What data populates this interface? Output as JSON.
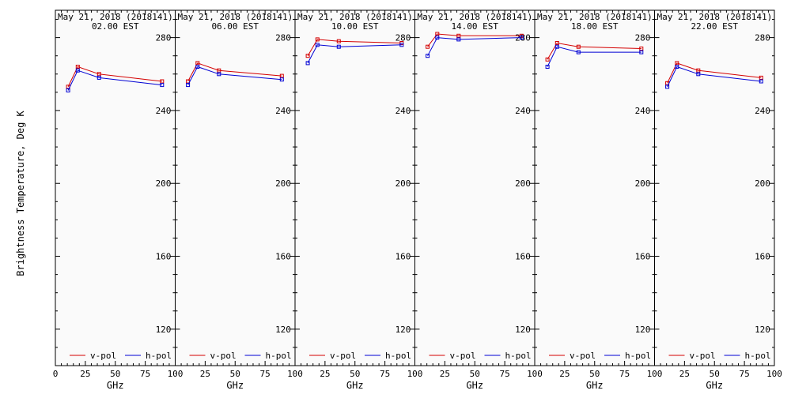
{
  "figure": {
    "ylabel": "Brightness Temperature, Deg K"
  },
  "chart_data": [
    {
      "type": "line",
      "title": "May 21, 2018 (2018141)",
      "subtitle": "02.00 EST",
      "xlabel": "GHz",
      "ylabel": "Brightness Temperature, Deg K",
      "xlim": [
        0,
        100
      ],
      "ylim": [
        100,
        295
      ],
      "x_ticks": [
        0,
        25,
        50,
        75,
        100
      ],
      "y_ticks": [
        120,
        160,
        200,
        240,
        280
      ],
      "grid": false,
      "legend": "bottom",
      "series": [
        {
          "name": "v-pol",
          "color": "#d40000",
          "x": [
            10.65,
            18.7,
            36.5,
            89.0
          ],
          "y": [
            253,
            264,
            260,
            256
          ]
        },
        {
          "name": "h-pol",
          "color": "#0000d4",
          "x": [
            10.65,
            18.7,
            36.5,
            89.0
          ],
          "y": [
            251,
            262,
            258,
            254
          ]
        }
      ]
    },
    {
      "type": "line",
      "title": "May 21, 2018 (2018141)",
      "subtitle": "06.00 EST",
      "xlabel": "GHz",
      "ylabel": "Brightness Temperature, Deg K",
      "xlim": [
        0,
        100
      ],
      "ylim": [
        100,
        295
      ],
      "x_ticks": [
        0,
        25,
        50,
        75,
        100
      ],
      "y_ticks": [
        120,
        160,
        200,
        240,
        280
      ],
      "grid": false,
      "legend": "bottom",
      "series": [
        {
          "name": "v-pol",
          "color": "#d40000",
          "x": [
            10.65,
            18.7,
            36.5,
            89.0
          ],
          "y": [
            256,
            266,
            262,
            259
          ]
        },
        {
          "name": "h-pol",
          "color": "#0000d4",
          "x": [
            10.65,
            18.7,
            36.5,
            89.0
          ],
          "y": [
            254,
            264,
            260,
            257
          ]
        }
      ]
    },
    {
      "type": "line",
      "title": "May 21, 2018 (2018141)",
      "subtitle": "10.00 EST",
      "xlabel": "GHz",
      "ylabel": "Brightness Temperature, Deg K",
      "xlim": [
        0,
        100
      ],
      "ylim": [
        100,
        295
      ],
      "x_ticks": [
        0,
        25,
        50,
        75,
        100
      ],
      "y_ticks": [
        120,
        160,
        200,
        240,
        280
      ],
      "grid": false,
      "legend": "bottom",
      "series": [
        {
          "name": "v-pol",
          "color": "#d40000",
          "x": [
            10.65,
            18.7,
            36.5,
            89.0
          ],
          "y": [
            270,
            279,
            278,
            277
          ]
        },
        {
          "name": "h-pol",
          "color": "#0000d4",
          "x": [
            10.65,
            18.7,
            36.5,
            89.0
          ],
          "y": [
            266,
            276,
            275,
            276
          ]
        }
      ]
    },
    {
      "type": "line",
      "title": "May 21, 2018 (2018141)",
      "subtitle": "14.00 EST",
      "xlabel": "GHz",
      "ylabel": "Brightness Temperature, Deg K",
      "xlim": [
        0,
        100
      ],
      "ylim": [
        100,
        295
      ],
      "x_ticks": [
        0,
        25,
        50,
        75,
        100
      ],
      "y_ticks": [
        120,
        160,
        200,
        240,
        280
      ],
      "grid": false,
      "legend": "bottom",
      "series": [
        {
          "name": "v-pol",
          "color": "#d40000",
          "x": [
            10.65,
            18.7,
            36.5,
            89.0
          ],
          "y": [
            275,
            282,
            281,
            281
          ]
        },
        {
          "name": "h-pol",
          "color": "#0000d4",
          "x": [
            10.65,
            18.7,
            36.5,
            89.0
          ],
          "y": [
            270,
            280,
            279,
            280
          ]
        }
      ]
    },
    {
      "type": "line",
      "title": "May 21, 2018 (2018141)",
      "subtitle": "18.00 EST",
      "xlabel": "GHz",
      "ylabel": "Brightness Temperature, Deg K",
      "xlim": [
        0,
        100
      ],
      "ylim": [
        100,
        295
      ],
      "x_ticks": [
        0,
        25,
        50,
        75,
        100
      ],
      "y_ticks": [
        120,
        160,
        200,
        240,
        280
      ],
      "grid": false,
      "legend": "bottom",
      "series": [
        {
          "name": "v-pol",
          "color": "#d40000",
          "x": [
            10.65,
            18.7,
            36.5,
            89.0
          ],
          "y": [
            268,
            277,
            275,
            274
          ]
        },
        {
          "name": "h-pol",
          "color": "#0000d4",
          "x": [
            10.65,
            18.7,
            36.5,
            89.0
          ],
          "y": [
            264,
            275,
            272,
            272
          ]
        }
      ]
    },
    {
      "type": "line",
      "title": "May 21, 2018 (2018141)",
      "subtitle": "22.00 EST",
      "xlabel": "GHz",
      "ylabel": "Brightness Temperature, Deg K",
      "xlim": [
        0,
        100
      ],
      "ylim": [
        100,
        295
      ],
      "x_ticks": [
        0,
        25,
        50,
        75,
        100
      ],
      "y_ticks": [
        120,
        160,
        200,
        240,
        280
      ],
      "grid": false,
      "legend": "bottom",
      "series": [
        {
          "name": "v-pol",
          "color": "#d40000",
          "x": [
            10.65,
            18.7,
            36.5,
            89.0
          ],
          "y": [
            255,
            266,
            262,
            258
          ]
        },
        {
          "name": "h-pol",
          "color": "#0000d4",
          "x": [
            10.65,
            18.7,
            36.5,
            89.0
          ],
          "y": [
            253,
            264,
            260,
            256
          ]
        }
      ]
    }
  ]
}
